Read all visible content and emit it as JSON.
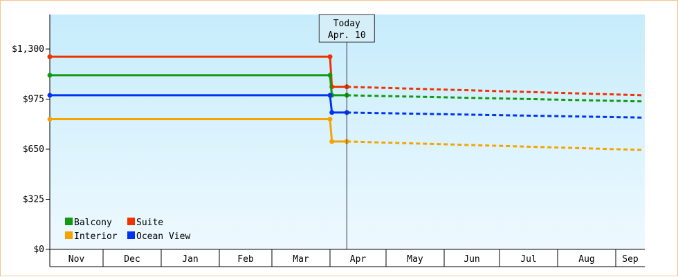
{
  "chart_data": {
    "type": "line",
    "y_ticks": [
      {
        "value": 0,
        "label": "$0"
      },
      {
        "value": 325,
        "label": "$325"
      },
      {
        "value": 650,
        "label": "$650"
      },
      {
        "value": 975,
        "label": "$975"
      },
      {
        "value": 1300,
        "label": "$1,300"
      }
    ],
    "ylim": [
      0,
      1300
    ],
    "months": [
      "Nov",
      "Dec",
      "Jan",
      "Feb",
      "Mar",
      "Apr",
      "May",
      "Jun",
      "Jul",
      "Aug",
      "Sep"
    ],
    "today": {
      "line1": "Today",
      "line2": "Apr. 10"
    },
    "legend_placement": "bottom-left",
    "series": [
      {
        "name": "Suite",
        "color": "#ee3300",
        "history": [
          [
            "Nov 1",
            1250
          ],
          [
            "Apr 1",
            1250
          ],
          [
            "Apr 2",
            1055
          ],
          [
            "Apr 10",
            1055
          ]
        ],
        "forecast": [
          [
            "Apr 10",
            1055
          ],
          [
            "Sep 30",
            1000
          ]
        ]
      },
      {
        "name": "Balcony",
        "color": "#119911",
        "history": [
          [
            "Nov 1",
            1130
          ],
          [
            "Apr 1",
            1130
          ],
          [
            "Apr 2",
            1000
          ],
          [
            "Apr 10",
            1000
          ]
        ],
        "forecast": [
          [
            "Apr 10",
            1000
          ],
          [
            "Sep 30",
            960
          ]
        ]
      },
      {
        "name": "Ocean View",
        "color": "#0033ee",
        "history": [
          [
            "Nov 1",
            1000
          ],
          [
            "Apr 1",
            1000
          ],
          [
            "Apr 2",
            888
          ],
          [
            "Apr 10",
            888
          ]
        ],
        "forecast": [
          [
            "Apr 10",
            888
          ],
          [
            "Sep 30",
            855
          ]
        ]
      },
      {
        "name": "Interior",
        "color": "#f5a300",
        "history": [
          [
            "Nov 1",
            845
          ],
          [
            "Apr 1",
            845
          ],
          [
            "Apr 2",
            700
          ],
          [
            "Apr 10",
            700
          ]
        ],
        "forecast": [
          [
            "Apr 10",
            700
          ],
          [
            "Sep 30",
            645
          ]
        ]
      }
    ],
    "legend_order": [
      "Balcony",
      "Suite",
      "Interior",
      "Ocean View"
    ]
  }
}
